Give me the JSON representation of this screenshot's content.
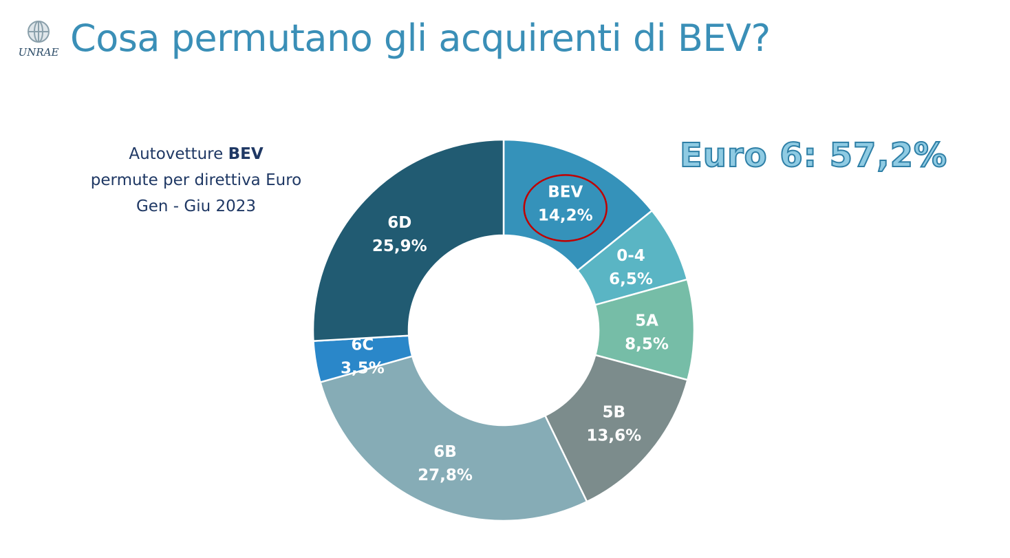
{
  "header": {
    "title": "Cosa permutano gli acquirenti di BEV?",
    "logo_text": "UNRAE"
  },
  "chart_text": {
    "line1_prefix": "Autovetture ",
    "line1_bold": "BEV",
    "line2": "permute per direttiva Euro",
    "line3": "Gen - Giu 2023"
  },
  "callout": "Euro 6: 57,2%",
  "colors": {
    "title": "#3A8FB7",
    "subtitle": "#1F3864",
    "callout_fill": "#8FCBE3",
    "callout_stroke": "#2E7FA6",
    "highlight_ring": "#C00000"
  },
  "chart_data": {
    "type": "donut",
    "highlighted": "BEV",
    "slices": [
      {
        "label": "BEV",
        "value": 14.2,
        "display": "14,2%",
        "color": "#3592BA"
      },
      {
        "label": "0-4",
        "value": 6.5,
        "display": "6,5%",
        "color": "#5AB5C4"
      },
      {
        "label": "5A",
        "value": 8.5,
        "display": "8,5%",
        "color": "#76BDA7"
      },
      {
        "label": "5B",
        "value": 13.6,
        "display": "13,6%",
        "color": "#7C8C8C"
      },
      {
        "label": "6B",
        "value": 27.8,
        "display": "27,8%",
        "color": "#86ACB6"
      },
      {
        "label": "6C",
        "value": 3.5,
        "display": "3,5%",
        "color": "#2A87C9"
      },
      {
        "label": "6D",
        "value": 25.9,
        "display": "25,9%",
        "color": "#215B72"
      }
    ]
  }
}
